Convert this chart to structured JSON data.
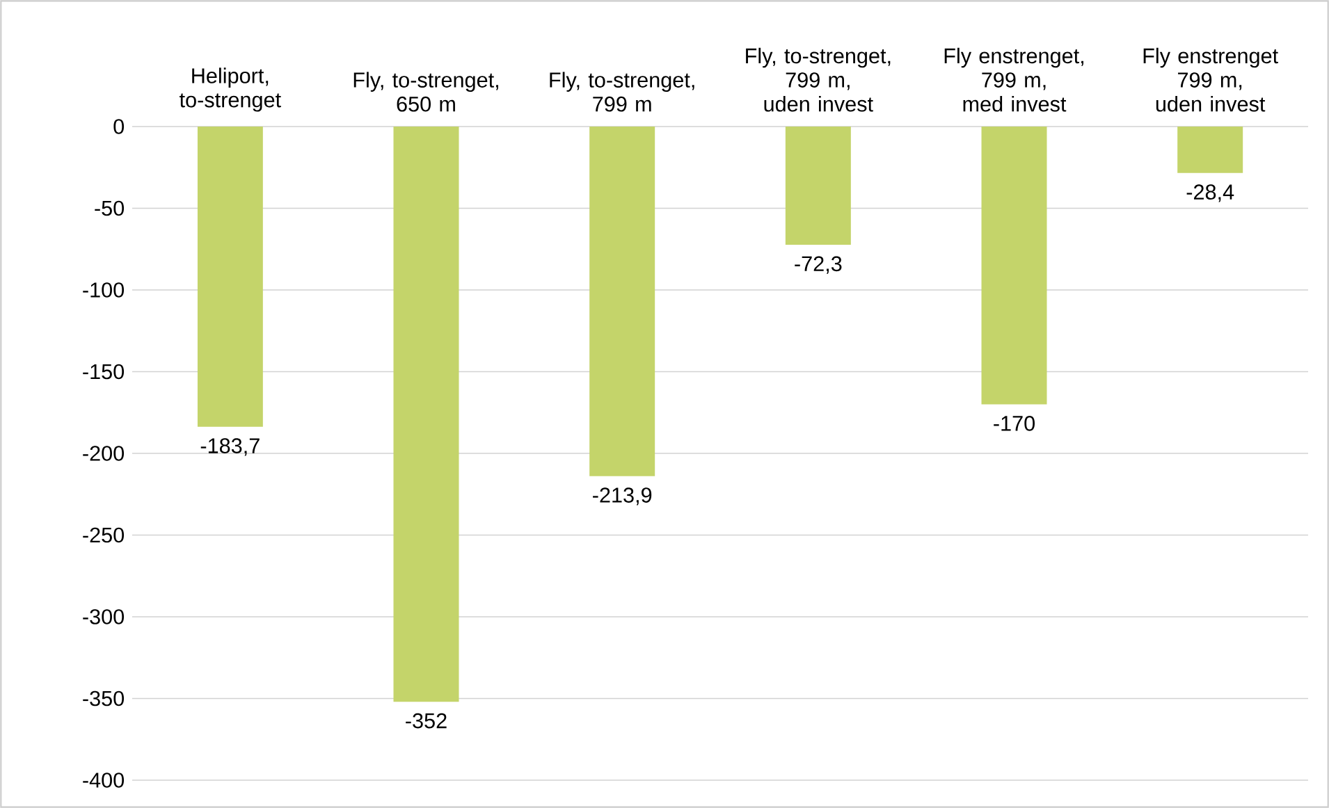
{
  "chart_data": {
    "type": "bar",
    "categories": [
      "Heliport, to-strenget",
      "Fly, to-strenget, 650 m",
      "Fly, to-strenget, 799 m",
      "Fly, to-strenget, 799 m, uden invest",
      "Fly enstrenget, 799 m, med invest",
      "Fly enstrenget 799 m, uden invest"
    ],
    "values": [
      -183.7,
      -352,
      -213.9,
      -72.3,
      -170,
      -28.4
    ],
    "value_labels": [
      "-183,7",
      "-352",
      "-213,9",
      "-72,3",
      "-170",
      "-28,4"
    ],
    "color": "#c4d46a",
    "ylim": [
      -400,
      0
    ],
    "yticks": [
      0,
      -50,
      -100,
      -150,
      -200,
      -250,
      -300,
      -350,
      -400
    ],
    "grid": "y"
  }
}
